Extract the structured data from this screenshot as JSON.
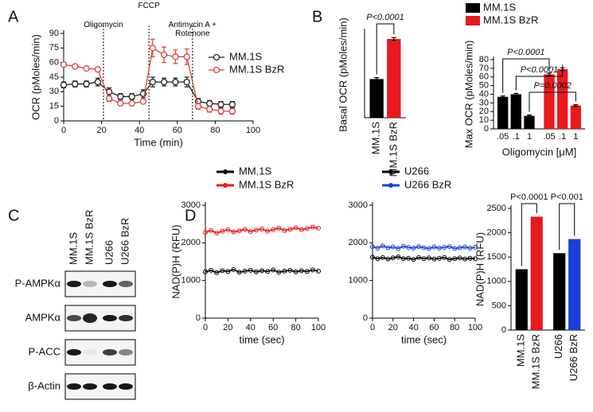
{
  "panels": [
    "A",
    "B",
    "C",
    "D"
  ],
  "blot": {
    "lanes": [
      "MM.1S",
      "MM.1S BzR",
      "U266",
      "U266 BzR"
    ],
    "rows": [
      "P-AMPKα",
      "AMPKα",
      "P-ACC",
      "β-Actin"
    ]
  },
  "chart_data": [
    {
      "type": "line",
      "x_label": "Time (min)",
      "y_label": "OCR (pMoles/min)",
      "x": [
        0,
        6,
        12,
        18,
        24,
        30,
        36,
        42,
        47,
        53,
        59,
        65,
        71,
        77,
        83,
        89
      ],
      "xlim": [
        0,
        100
      ],
      "xticks": [
        0,
        20,
        40,
        60,
        80,
        100
      ],
      "ylim": [
        0,
        90
      ],
      "yticks": [
        0,
        15,
        30,
        45,
        60,
        75,
        90
      ],
      "events": [
        {
          "label": "Oligomycin",
          "x": 21
        },
        {
          "label": "FCCP",
          "x": 45
        },
        {
          "label": "Antimycin A + Rotenone",
          "x": 68
        }
      ],
      "series": [
        {
          "name": "MM.1S",
          "color": "#222222",
          "values": [
            37,
            38,
            38,
            40,
            30,
            25,
            25,
            28,
            40,
            40,
            40,
            40,
            20,
            18,
            17,
            17
          ],
          "errors": [
            3,
            3,
            3,
            4,
            4,
            3,
            3,
            4,
            5,
            4,
            4,
            5,
            3,
            3,
            3,
            3
          ]
        },
        {
          "name": "MM.1S BzR",
          "color": "#d9413f",
          "values": [
            58,
            56,
            54,
            53,
            23,
            18,
            18,
            20,
            75,
            68,
            66,
            66,
            15,
            12,
            10,
            10
          ],
          "errors": [
            2,
            2,
            2,
            2,
            3,
            2,
            2,
            2,
            9,
            8,
            7,
            8,
            3,
            3,
            3,
            3
          ]
        }
      ]
    },
    {
      "type": "bar",
      "y_label": "Basal OCR (pMoles/min)",
      "categories": [
        "MM.1S",
        "MM.1S BzR"
      ],
      "values": [
        27,
        55
      ],
      "errors": [
        1,
        1
      ],
      "colors": [
        "#000000",
        "#e8191f"
      ],
      "ylim": [
        0,
        60
      ],
      "annotations": [
        "P<0.0001"
      ]
    },
    {
      "type": "grouped_bar",
      "x_label": "Oligomycin [μM]",
      "y_label": "Max OCR (pMoles/min)",
      "categories": [
        ".05",
        ".1",
        "1"
      ],
      "ylim": [
        0,
        80
      ],
      "yticks": [
        0,
        10,
        20,
        30,
        40,
        50,
        60,
        70,
        80
      ],
      "annotations": [
        "P<0.0001",
        "P<0.0001",
        "P=0.0002"
      ],
      "series": [
        {
          "name": "MM.1S",
          "color": "#000000",
          "values": [
            37,
            40,
            15
          ],
          "errors": [
            1,
            1,
            1
          ]
        },
        {
          "name": "MM.1S BzR",
          "color": "#e8191f",
          "values": [
            63,
            69,
            27
          ],
          "errors": [
            1.5,
            1.5,
            1
          ]
        }
      ]
    },
    {
      "type": "scatter",
      "x_label": "time (sec)",
      "y_label": "NAD(P)H (RFU)",
      "x": [
        0,
        5,
        10,
        15,
        20,
        25,
        30,
        35,
        40,
        45,
        50,
        55,
        60,
        65,
        70,
        75,
        80,
        85,
        90,
        95,
        100
      ],
      "xlim": [
        0,
        100
      ],
      "xticks": [
        0,
        20,
        40,
        60,
        80,
        100
      ],
      "ylim": [
        0,
        3000
      ],
      "yticks": [
        0,
        1000,
        2000,
        3000
      ],
      "series": [
        {
          "name": "MM.1S",
          "color": "#000000",
          "values": [
            1230,
            1270,
            1210,
            1260,
            1240,
            1290,
            1220,
            1250,
            1270,
            1230,
            1260,
            1240,
            1280,
            1220,
            1250,
            1270,
            1230,
            1260,
            1240,
            1280,
            1250
          ]
        },
        {
          "name": "MM.1S BzR",
          "color": "#e8191f",
          "values": [
            2280,
            2330,
            2260,
            2310,
            2350,
            2290,
            2320,
            2360,
            2300,
            2340,
            2370,
            2310,
            2350,
            2390,
            2330,
            2360,
            2400,
            2350,
            2380,
            2420,
            2390
          ]
        }
      ]
    },
    {
      "type": "scatter",
      "x_label": "time (sec)",
      "x": [
        0,
        5,
        10,
        15,
        20,
        25,
        30,
        35,
        40,
        45,
        50,
        55,
        60,
        65,
        70,
        75,
        80,
        85,
        90,
        95,
        100
      ],
      "xlim": [
        0,
        100
      ],
      "xticks": [
        0,
        20,
        40,
        60,
        80,
        100
      ],
      "ylim": [
        0,
        3000
      ],
      "yticks": [
        0,
        1000,
        2000,
        3000
      ],
      "series": [
        {
          "name": "U266",
          "color": "#000000",
          "values": [
            1620,
            1580,
            1610,
            1570,
            1600,
            1630,
            1580,
            1590,
            1560,
            1610,
            1580,
            1600,
            1570,
            1590,
            1610,
            1560,
            1580,
            1600,
            1570,
            1590,
            1580
          ]
        },
        {
          "name": "U266 BzR",
          "color": "#1c3fd6",
          "values": [
            1900,
            1860,
            1920,
            1870,
            1890,
            1850,
            1910,
            1880,
            1860,
            1900,
            1870,
            1850,
            1890,
            1860,
            1880,
            1900,
            1850,
            1870,
            1890,
            1860,
            1880
          ]
        }
      ]
    },
    {
      "type": "bar",
      "y_label": "NAD(P)H (RFU)",
      "categories": [
        "MM.1S",
        "MM.1S BzR",
        "U266",
        "U266 BzR"
      ],
      "values": [
        1250,
        2330,
        1580,
        1870
      ],
      "colors": [
        "#000000",
        "#e8191f",
        "#000000",
        "#1c3fd6"
      ],
      "ylim": [
        0,
        2500
      ],
      "yticks": [
        0,
        500,
        1000,
        1500,
        2000,
        2500
      ],
      "annotations": [
        "P<0.0001",
        "P<0.001"
      ]
    }
  ]
}
